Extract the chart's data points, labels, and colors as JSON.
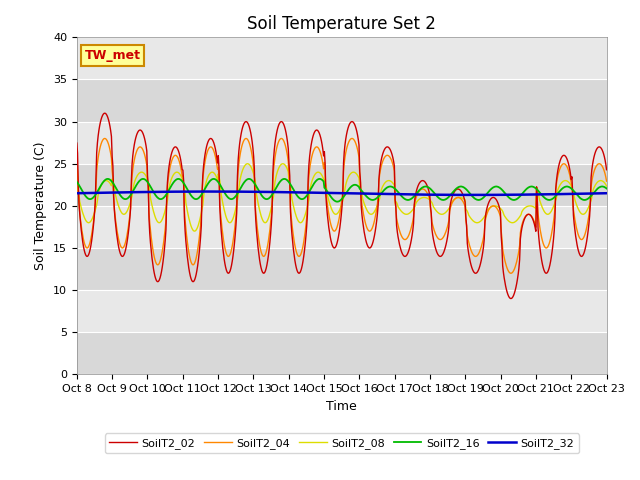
{
  "title": "Soil Temperature Set 2",
  "xlabel": "Time",
  "ylabel": "Soil Temperature (C)",
  "ylim": [
    0,
    40
  ],
  "xtick_labels": [
    "Oct 8",
    "Oct 9",
    "Oct 10",
    "Oct 11",
    "Oct 12",
    "Oct 13",
    "Oct 14",
    "Oct 15",
    "Oct 16",
    "Oct 17",
    "Oct 18",
    "Oct 19",
    "Oct 20",
    "Oct 21",
    "Oct 22",
    "Oct 23"
  ],
  "plot_bg": "#d8d8d8",
  "fig_background": "#ffffff",
  "legend_labels": [
    "SoilT2_02",
    "SoilT2_04",
    "SoilT2_08",
    "SoilT2_16",
    "SoilT2_32"
  ],
  "legend_colors": [
    "#cc0000",
    "#ff8800",
    "#dddd00",
    "#00bb00",
    "#0000cc"
  ],
  "annotation_text": "TW_met",
  "annotation_bg": "#ffff99",
  "annotation_border": "#cc8800",
  "title_fontsize": 12,
  "axis_fontsize": 9,
  "tick_fontsize": 8,
  "n_days": 15,
  "hours_per_day": 24,
  "base_temp": 21.5,
  "amp02": [
    17,
    15,
    16,
    17,
    18,
    18,
    17,
    15,
    12,
    9,
    8,
    9,
    10,
    14,
    13
  ],
  "min02": [
    14,
    14,
    11,
    11,
    12,
    12,
    12,
    15,
    15,
    14,
    14,
    12,
    9,
    12,
    14
  ],
  "amp04": [
    13,
    12,
    13,
    14,
    14,
    14,
    13,
    11,
    9,
    6,
    5,
    6,
    7,
    10,
    9
  ],
  "min04": [
    15,
    15,
    13,
    13,
    14,
    14,
    14,
    17,
    17,
    16,
    16,
    14,
    12,
    15,
    16
  ],
  "amp08": [
    5,
    5,
    6,
    7,
    7,
    7,
    6,
    5,
    4,
    2,
    2,
    2,
    2,
    4,
    4
  ],
  "min08": [
    18,
    19,
    18,
    17,
    18,
    18,
    18,
    19,
    19,
    19,
    19,
    18,
    18,
    19,
    19
  ],
  "amp16": [
    1.2,
    1.2,
    1.2,
    1.2,
    1.2,
    1.2,
    1.2,
    1.0,
    0.8,
    0.8,
    0.8,
    0.8,
    0.8,
    0.8,
    0.8
  ],
  "base16": [
    22,
    22,
    22,
    22,
    22,
    22,
    22,
    21.5,
    21.5,
    21.5,
    21.5,
    21.5,
    21.5,
    21.5,
    21.5
  ],
  "base32": 21.5,
  "amp32": 0.2,
  "peak_hour02": 13,
  "peak_hour04": 13,
  "peak_hour08": 14,
  "peak_hour16": 15
}
